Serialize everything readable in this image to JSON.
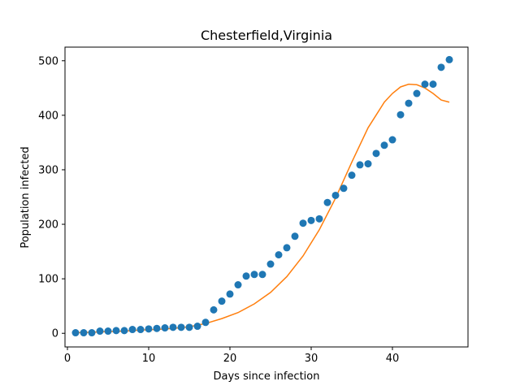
{
  "chart_data": {
    "type": "scatter",
    "title": "Chesterfield,Virginia",
    "xlabel": "Days since infection",
    "ylabel": "Population infected",
    "xlim": [
      -0.3,
      49.3
    ],
    "ylim": [
      -25,
      525
    ],
    "xticks": [
      0,
      10,
      20,
      30,
      40
    ],
    "yticks": [
      0,
      100,
      200,
      300,
      400,
      500
    ],
    "grid": false,
    "series": [
      {
        "kind": "points",
        "color": "#1f77b4",
        "x": [
          1,
          2,
          3,
          4,
          5,
          6,
          7,
          8,
          9,
          10,
          11,
          12,
          13,
          14,
          15,
          16,
          17,
          18,
          19,
          20,
          21,
          22,
          23,
          24,
          25,
          26,
          27,
          28,
          29,
          30,
          31,
          32,
          33,
          34,
          35,
          36,
          37,
          38,
          39,
          40,
          41,
          42,
          43,
          44,
          45,
          46,
          47
        ],
        "y": [
          1,
          1,
          1,
          4,
          4,
          5,
          5,
          7,
          7,
          8,
          9,
          10,
          11,
          11,
          11,
          13,
          20,
          43,
          59,
          72,
          89,
          105,
          108,
          108,
          127,
          144,
          157,
          178,
          202,
          207,
          210,
          240,
          253,
          266,
          290,
          309,
          311,
          330,
          345,
          355,
          401,
          422,
          440,
          457,
          457,
          488,
          502
        ]
      },
      {
        "kind": "line",
        "color": "#ff7f0e",
        "x": [
          1,
          3,
          5,
          7,
          9,
          11,
          13,
          15,
          17,
          19,
          21,
          23,
          25,
          27,
          29,
          31,
          33,
          35,
          37,
          39,
          40,
          41,
          42,
          43,
          44,
          45,
          46,
          47
        ],
        "y": [
          1,
          2,
          3,
          4,
          6,
          7,
          9,
          12,
          18,
          27,
          38,
          54,
          75,
          104,
          142,
          190,
          248,
          314,
          377,
          424,
          440,
          452,
          457,
          456,
          450,
          440,
          428,
          424
        ]
      }
    ]
  }
}
